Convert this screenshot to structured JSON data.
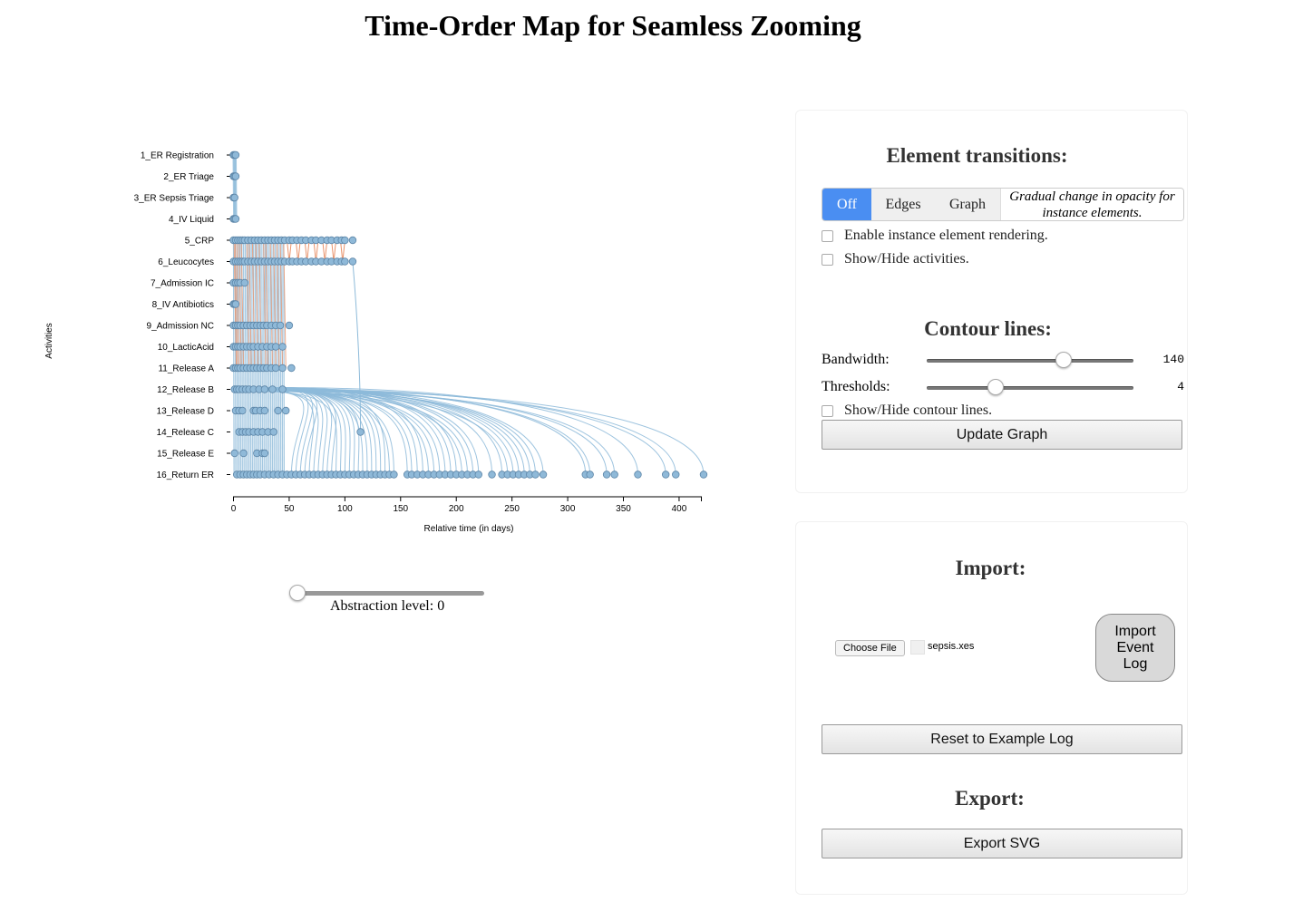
{
  "page": {
    "title": "Time-Order Map for Seamless Zooming"
  },
  "chart_data": {
    "type": "scatter",
    "title": "",
    "xlabel": "Relative time (in days)",
    "ylabel": "Activities",
    "xlim": [
      0,
      420
    ],
    "x_ticks": [
      0,
      50,
      100,
      150,
      200,
      250,
      300,
      350,
      400
    ],
    "categories": [
      "1_ER Registration",
      "2_ER Triage",
      "3_ER Sepsis Triage",
      "4_IV Liquid",
      "5_CRP",
      "6_Leucocytes",
      "7_Admission IC",
      "8_IV Antibiotics",
      "9_Admission NC",
      "10_LacticAcid",
      "11_Release A",
      "12_Release B",
      "13_Release D",
      "14_Release C",
      "15_Release E",
      "16_Return ER"
    ],
    "series": [
      {
        "name": "",
        "points": [
          {
            "activity": "1_ER Registration",
            "x": [
              0,
              1,
              2
            ]
          },
          {
            "activity": "2_ER Triage",
            "x": [
              0,
              1,
              2
            ]
          },
          {
            "activity": "3_ER Sepsis Triage",
            "x": [
              0,
              1
            ]
          },
          {
            "activity": "4_IV Liquid",
            "x": [
              0,
              1,
              2
            ]
          },
          {
            "activity": "5_CRP",
            "x": [
              0,
              2,
              4,
              6,
              8,
              10,
              13,
              16,
              19,
              22,
              25,
              28,
              31,
              34,
              37,
              40,
              43,
              46,
              50,
              53,
              57,
              61,
              65,
              70,
              74,
              79,
              84,
              88,
              93,
              97,
              100,
              107
            ]
          },
          {
            "activity": "6_Leucocytes",
            "x": [
              0,
              2,
              4,
              6,
              8,
              10,
              13,
              16,
              19,
              22,
              25,
              28,
              31,
              34,
              37,
              40,
              43,
              46,
              50,
              53,
              57,
              61,
              65,
              70,
              74,
              79,
              84,
              88,
              93,
              97,
              100,
              107
            ]
          },
          {
            "activity": "7_Admission IC",
            "x": [
              0,
              2,
              4,
              6,
              10
            ]
          },
          {
            "activity": "8_IV Antibiotics",
            "x": [
              0,
              1,
              2
            ]
          },
          {
            "activity": "9_Admission NC",
            "x": [
              0,
              2,
              4,
              6,
              9,
              12,
              15,
              18,
              21,
              24,
              27,
              30,
              34,
              38,
              42,
              50
            ]
          },
          {
            "activity": "10_LacticAcid",
            "x": [
              0,
              2,
              4,
              6,
              9,
              12,
              15,
              18,
              22,
              26,
              30,
              34,
              38,
              44
            ]
          },
          {
            "activity": "11_Release A",
            "x": [
              0,
              2,
              4,
              6,
              9,
              12,
              15,
              18,
              21,
              24,
              27,
              30,
              34,
              38,
              44,
              52
            ]
          },
          {
            "activity": "12_Release B",
            "x": [
              1,
              3,
              5,
              8,
              11,
              14,
              18,
              23,
              28,
              35,
              44
            ]
          },
          {
            "activity": "13_Release D",
            "x": [
              2,
              5,
              8,
              18,
              20,
              24,
              28,
              40,
              47
            ]
          },
          {
            "activity": "14_Release C",
            "x": [
              5,
              8,
              11,
              14,
              18,
              22,
              26,
              31,
              36,
              114
            ]
          },
          {
            "activity": "15_Release E",
            "x": [
              1,
              9,
              21,
              26,
              28
            ]
          },
          {
            "activity": "16_Return ER",
            "x": [
              3,
              6,
              9,
              12,
              15,
              18,
              21,
              24,
              28,
              32,
              36,
              40,
              44,
              48,
              52,
              56,
              60,
              64,
              68,
              72,
              76,
              80,
              84,
              88,
              92,
              96,
              100,
              104,
              108,
              112,
              116,
              120,
              124,
              128,
              132,
              136,
              140,
              144,
              156,
              160,
              165,
              170,
              175,
              180,
              185,
              190,
              195,
              200,
              205,
              210,
              215,
              220,
              232,
              241,
              246,
              251,
              256,
              261,
              266,
              271,
              278,
              316,
              320,
              335,
              342,
              363,
              388,
              397,
              422
            ]
          }
        ]
      }
    ]
  },
  "abstraction": {
    "label": "Abstraction level: 0",
    "value": 0
  },
  "transitions": {
    "heading": "Element transitions:",
    "options": [
      "Off",
      "Edges",
      "Graph"
    ],
    "selected": "Off",
    "description": "Gradual change in opacity for instance elements.",
    "enable_label": "Enable instance element rendering.",
    "activities_label": "Show/Hide activities."
  },
  "contour": {
    "heading": "Contour lines:",
    "bandwidth_label": "Bandwidth:",
    "bandwidth_value": "140",
    "bandwidth_fraction": 0.66,
    "thresholds_label": "Thresholds:",
    "thresholds_value": "4",
    "thresholds_fraction": 0.33,
    "show_label": "Show/Hide contour lines.",
    "update_label": "Update Graph"
  },
  "import": {
    "heading": "Import:",
    "choose_label": "Choose File",
    "file_name": "sepsis.xes",
    "import_button_lines": [
      "Import",
      "Event",
      "Log"
    ],
    "reset_label": "Reset to Example Log"
  },
  "export": {
    "heading": "Export:",
    "svg_label": "Export SVG"
  },
  "colors": {
    "node": "#8fb9d8",
    "node_stroke": "#5d86a8",
    "edge_blue": "#8dbad9",
    "edge_orange": "#e9926a",
    "accent": "#4a8ef2"
  }
}
